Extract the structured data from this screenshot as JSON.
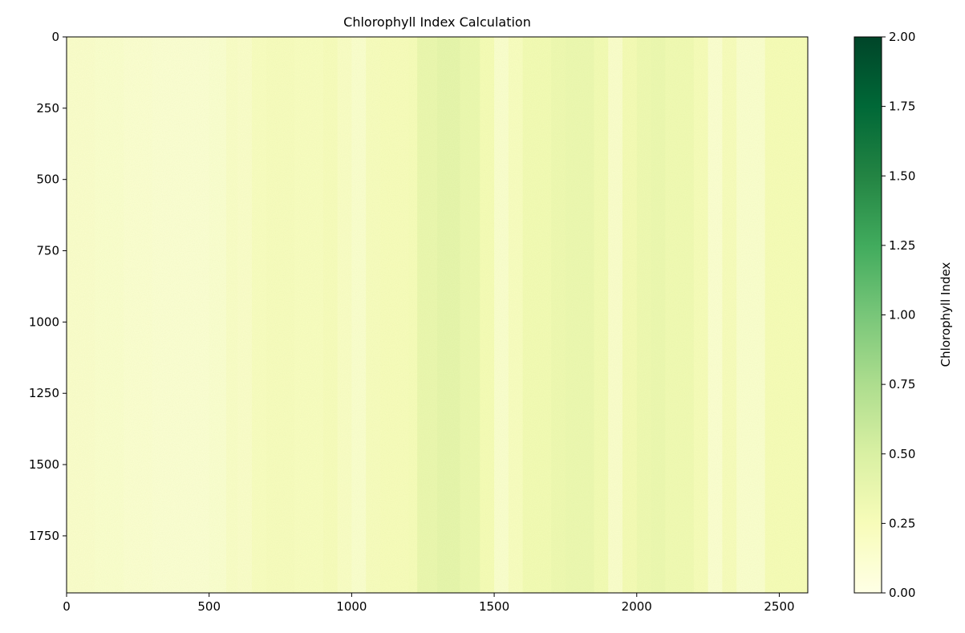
{
  "chart_data": {
    "type": "heatmap",
    "title": "Chlorophyll Index Calculation",
    "xlabel": "",
    "ylabel": "",
    "colormap": "YlGn",
    "xlim": [
      0,
      2600
    ],
    "ylim": [
      1950,
      0
    ],
    "x_ticks": [
      0,
      500,
      1000,
      1500,
      2000,
      2500
    ],
    "y_ticks": [
      0,
      250,
      500,
      750,
      1000,
      1250,
      1500,
      1750
    ],
    "colorbar": {
      "label": "Chlorophyll Index",
      "range": [
        0.0,
        2.0
      ],
      "ticks": [
        "0.00",
        "0.25",
        "0.50",
        "0.75",
        "1.00",
        "1.25",
        "1.50",
        "1.75",
        "2.00"
      ]
    },
    "column_profile": {
      "note": "approximate mean index vs image column (x in pixels)",
      "x": [
        0,
        100,
        200,
        300,
        400,
        500,
        560,
        600,
        650,
        700,
        800,
        900,
        950,
        1000,
        1050,
        1100,
        1200,
        1230,
        1300,
        1380,
        1450,
        1500,
        1550,
        1600,
        1700,
        1750,
        1850,
        1900,
        1950,
        2000,
        2050,
        2100,
        2200,
        2250,
        2300,
        2350,
        2450,
        2600
      ],
      "values": [
        0.13,
        0.12,
        0.1,
        0.09,
        0.09,
        0.11,
        0.16,
        0.14,
        0.2,
        0.21,
        0.2,
        0.22,
        0.17,
        0.12,
        0.21,
        0.23,
        0.24,
        0.35,
        0.39,
        0.34,
        0.26,
        0.12,
        0.2,
        0.28,
        0.32,
        0.33,
        0.28,
        0.13,
        0.27,
        0.32,
        0.33,
        0.3,
        0.24,
        0.1,
        0.22,
        0.12,
        0.25,
        0.27
      ]
    }
  },
  "colors": {
    "cmap_stops": [
      "#ffffe5",
      "#f7fcb9",
      "#d9f0a3",
      "#addd8e",
      "#78c679",
      "#41ab5d",
      "#238443",
      "#006837",
      "#004529"
    ]
  }
}
